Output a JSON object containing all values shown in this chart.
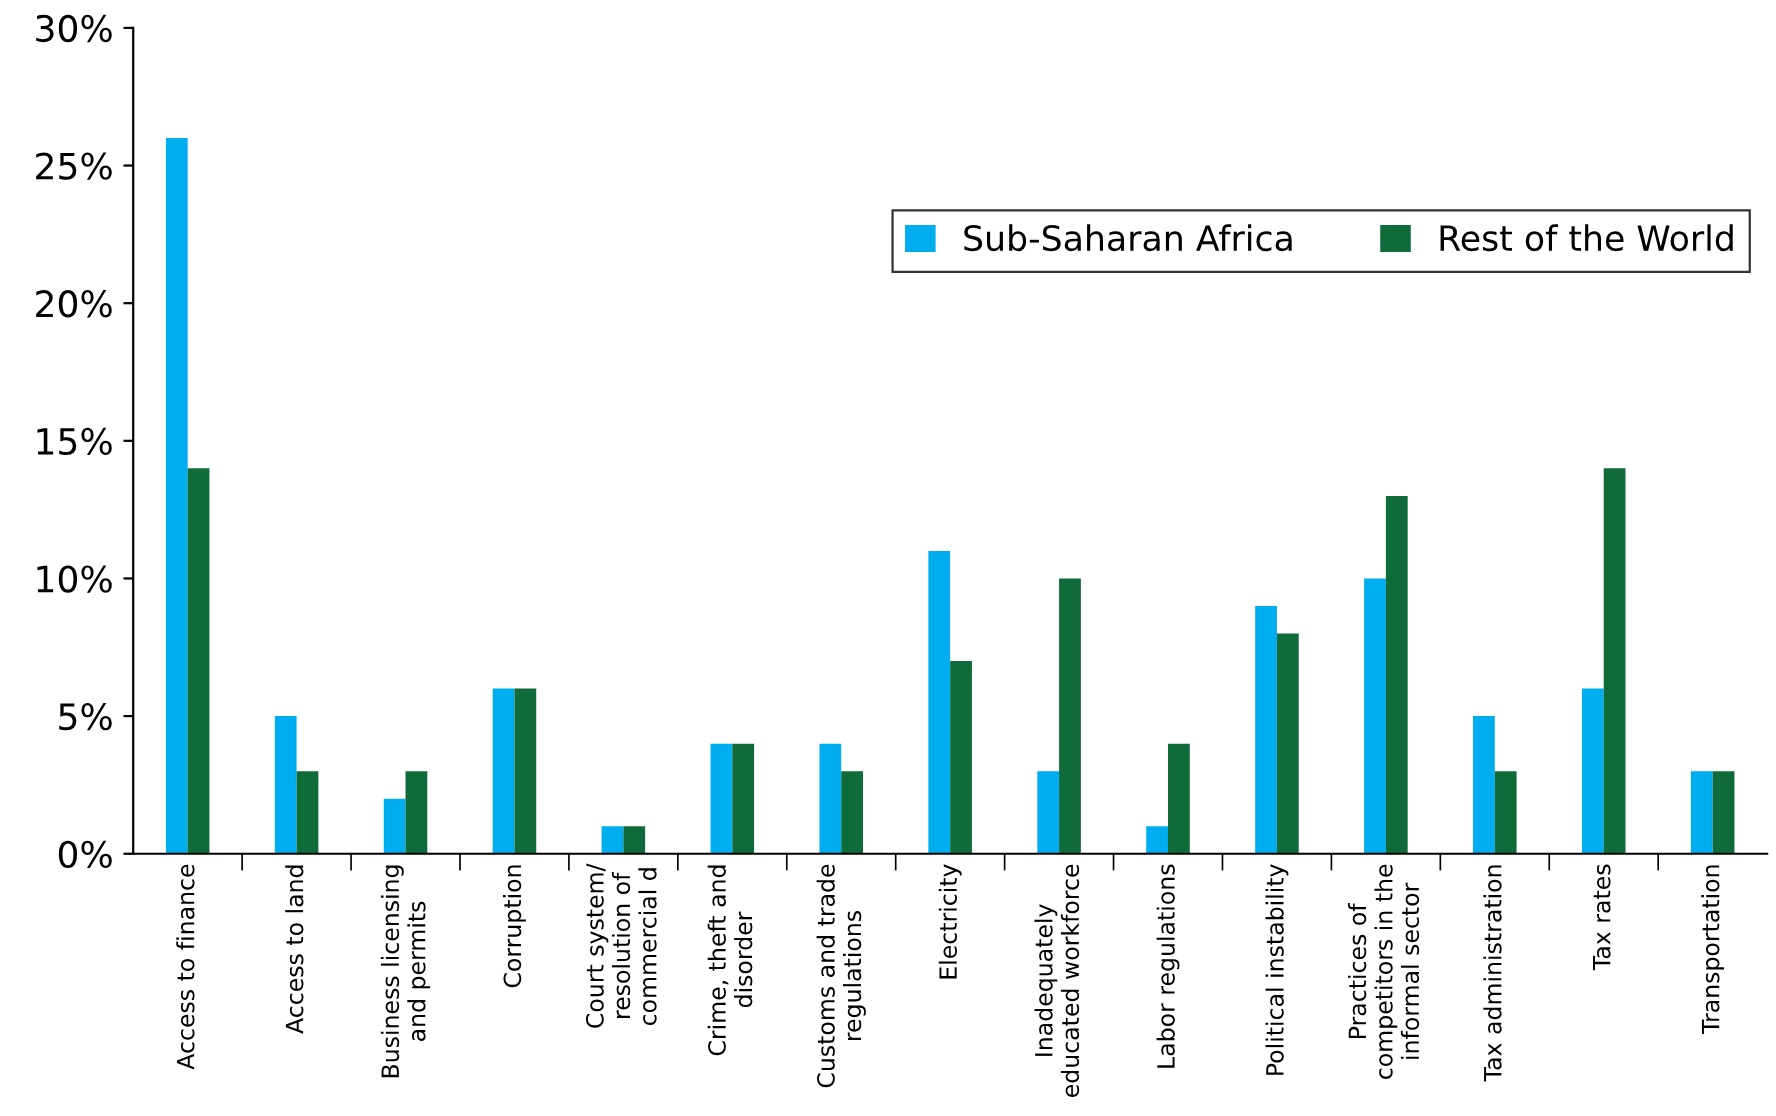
{
  "chart_data": {
    "type": "bar",
    "categories": [
      "Access to finance",
      "Access to land",
      "Business licensing\nand permits",
      "Corruption",
      "Court system/\nresolution of\ncommercial d",
      "Crime, theft and\ndisorder",
      "Customs and trade\nregulations",
      "Electricity",
      "Inadequately\neducated workforce",
      "Labor regulations",
      "Political instability",
      "Practices of\ncompetitors in the\ninformal sector",
      "Tax administration",
      "Tax rates",
      "Transportation"
    ],
    "series": [
      {
        "name": "Sub-Saharan Africa",
        "color": "#00aeef",
        "values": [
          26,
          5,
          2,
          6,
          1,
          4,
          4,
          11,
          3,
          1,
          9,
          10,
          5,
          6,
          3
        ]
      },
      {
        "name": "Rest of the World",
        "color": "#0f6b3a",
        "values": [
          14,
          3,
          3,
          6,
          1,
          4,
          3,
          7,
          10,
          4,
          8,
          13,
          3,
          14,
          3
        ]
      }
    ],
    "ylim": [
      0,
      30
    ],
    "yticks": [
      {
        "value": 0,
        "label": "0%"
      },
      {
        "value": 5,
        "label": "5%"
      },
      {
        "value": 10,
        "label": "10%"
      },
      {
        "value": 15,
        "label": "15%"
      },
      {
        "value": 20,
        "label": "20%"
      },
      {
        "value": 25,
        "label": "25%"
      },
      {
        "value": 30,
        "label": "30%"
      }
    ],
    "legend": "top right",
    "grid": false
  }
}
